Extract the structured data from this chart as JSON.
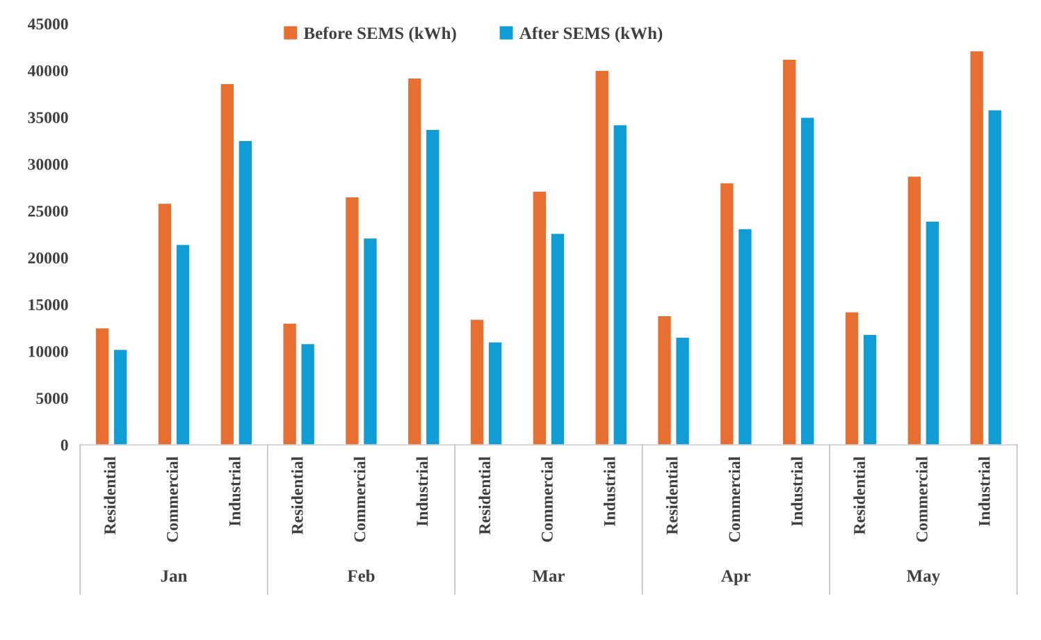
{
  "chart_data": {
    "type": "bar",
    "categories": [
      "Residential",
      "Commercial",
      "Industrial",
      "Residential",
      "Commercial",
      "Industrial",
      "Residential",
      "Commercial",
      "Industrial",
      "Residential",
      "Commercial",
      "Industrial",
      "Residential",
      "Commercial",
      "Industrial"
    ],
    "series": [
      {
        "name": "Before SEMS (kWh)",
        "color": "#e76f32",
        "values": [
          12500,
          25800,
          38600,
          13000,
          26500,
          39200,
          13400,
          27100,
          40000,
          13800,
          28000,
          41200,
          14200,
          28700,
          42100
        ]
      },
      {
        "name": "After SEMS (kWh)",
        "color": "#109dd5",
        "values": [
          10200,
          21400,
          32500,
          10800,
          22100,
          33700,
          11000,
          22600,
          34200,
          11500,
          23100,
          35000,
          11800,
          23900,
          35800
        ]
      }
    ],
    "annotations": [
      "Jan",
      "Feb",
      "Mar",
      "Apr",
      "May"
    ],
    "ylim": [
      0,
      45000
    ],
    "yticks": [
      0,
      5000,
      10000,
      15000,
      20000,
      25000,
      30000,
      35000,
      40000,
      45000
    ],
    "grid": false,
    "legend": "top"
  }
}
